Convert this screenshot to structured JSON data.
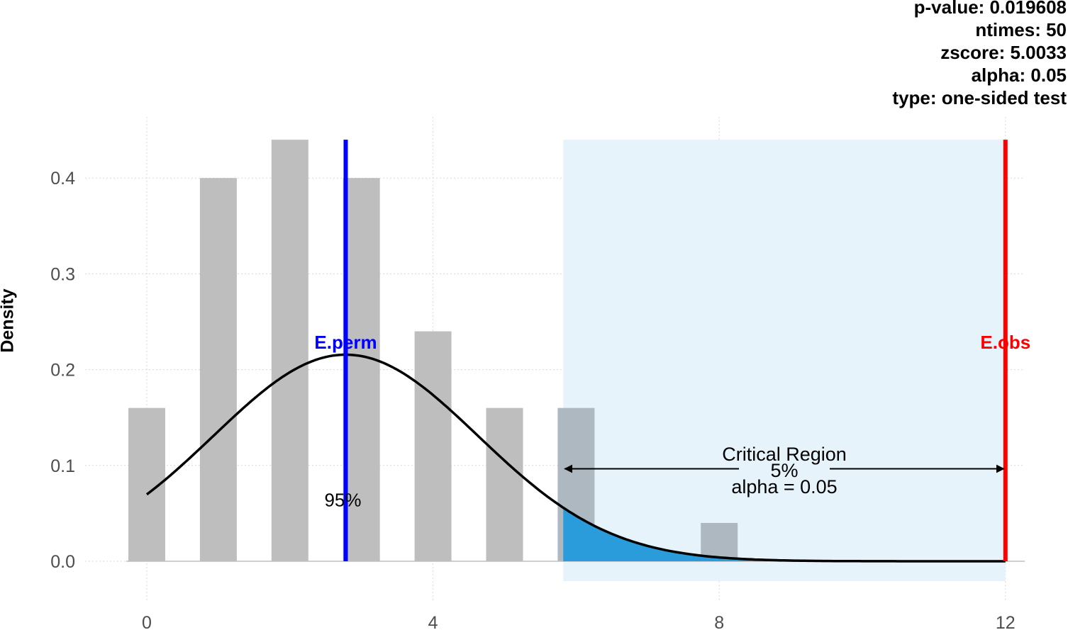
{
  "stats": {
    "pvalue": "p-value: 0.019608",
    "ntimes": "ntimes: 50",
    "zscore": "zscore: 5.0033",
    "alpha": "alpha: 0.05",
    "type": "type: one-sided test"
  },
  "chart_data": {
    "type": "bar",
    "ylabel": "Density",
    "xlim": [
      -0.7,
      12.5
    ],
    "ylim": [
      0,
      0.44
    ],
    "xticks": [
      0,
      4,
      8,
      12
    ],
    "yticks": [
      0.0,
      0.1,
      0.2,
      0.3,
      0.4
    ],
    "grid": true,
    "histogram": {
      "x": [
        0,
        1,
        2,
        3,
        4,
        5,
        6,
        8
      ],
      "values": [
        0.16,
        0.4,
        0.44,
        0.4,
        0.24,
        0.16,
        0.16,
        0.04
      ],
      "color": "#bebebe"
    },
    "density_curve": {
      "mean": 2.78,
      "sd": 1.85,
      "x_range": [
        0,
        12
      ],
      "color": "#000000"
    },
    "critical_region": {
      "x_start": 5.82,
      "x_end": 12,
      "fill": "#e6f3fb",
      "tail_fill": "#2b9cdb",
      "label": "Critical Region",
      "percent": "5%",
      "alpha_text": "alpha = 0.05"
    },
    "lines": [
      {
        "name": "E.perm",
        "x": 2.78,
        "color": "#0000ff"
      },
      {
        "name": "E.obs",
        "x": 12,
        "color": "#ff0000"
      }
    ],
    "annotations": [
      {
        "text": "95%",
        "x": 2.74,
        "y": 0.064
      }
    ]
  }
}
